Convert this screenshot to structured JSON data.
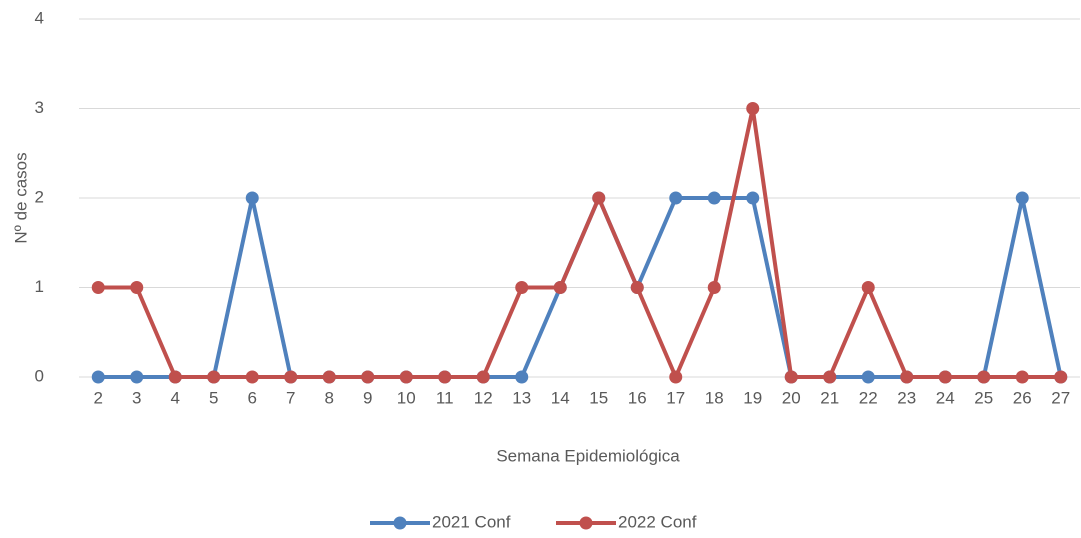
{
  "chart_data": {
    "type": "line",
    "x_label": "Semana Epidemiológica",
    "y_label": "Nº de casos",
    "categories": [
      "2",
      "3",
      "4",
      "5",
      "6",
      "7",
      "8",
      "9",
      "10",
      "11",
      "12",
      "13",
      "14",
      "15",
      "16",
      "17",
      "18",
      "19",
      "20",
      "21",
      "22",
      "23",
      "24",
      "25",
      "26",
      "27"
    ],
    "series": [
      {
        "name": "2021 Conf",
        "color": "#4f81bd",
        "values": [
          0,
          0,
          0,
          0,
          2,
          0,
          0,
          0,
          0,
          0,
          0,
          0,
          1,
          2,
          1,
          2,
          2,
          2,
          0,
          0,
          0,
          0,
          0,
          0,
          2,
          0
        ]
      },
      {
        "name": "2022 Conf",
        "color": "#c0504d",
        "values": [
          1,
          1,
          0,
          0,
          0,
          0,
          0,
          0,
          0,
          0,
          0,
          1,
          1,
          2,
          1,
          0,
          1,
          3,
          0,
          0,
          1,
          0,
          0,
          0,
          0,
          0
        ]
      }
    ],
    "ylim": [
      0,
      4
    ],
    "yticks": [
      0,
      1,
      2,
      3,
      4
    ],
    "grid": true,
    "legend": "bottom"
  }
}
